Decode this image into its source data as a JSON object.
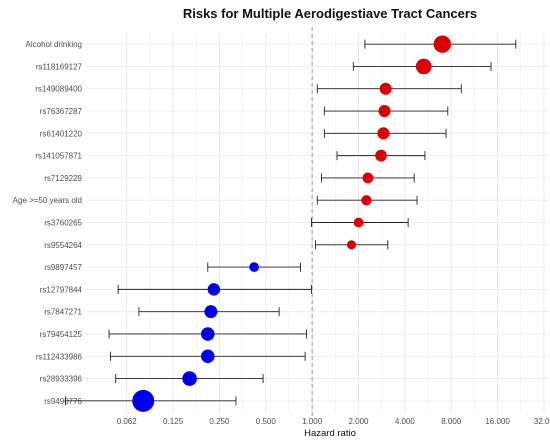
{
  "chart_data": {
    "type": "forest",
    "title": "Risks for Multiple Aerodigestiave Tract Cancers",
    "xlabel": "Hazard ratio",
    "ylabel": "",
    "x_scale": "log2",
    "xlim": [
      0.034,
      34
    ],
    "x_ticks": [
      0.0625,
      0.125,
      0.25,
      0.5,
      1,
      2,
      4,
      8,
      16,
      32
    ],
    "x_tick_labels": [
      "0.062",
      "0.125",
      "0.250",
      "0.500",
      "1.000",
      "2.000",
      "4.000",
      "8.000",
      "16.000",
      "32.00"
    ],
    "reference_line": 1,
    "grid": true,
    "legend": "none",
    "colors": {
      "risk": "#dd0000",
      "protective": "#0000ee",
      "whisker": "#222222",
      "reference": "#999999"
    },
    "rows": [
      {
        "label": "Alcohol drinking",
        "hr": 7.0,
        "lower": 2.2,
        "upper": 21.0,
        "direction": "risk",
        "weight": 0.55
      },
      {
        "label": "rs118169127",
        "hr": 5.3,
        "lower": 1.85,
        "upper": 14.5,
        "direction": "risk",
        "weight": 0.42
      },
      {
        "label": "rs149089400",
        "hr": 3.0,
        "lower": 1.08,
        "upper": 9.3,
        "direction": "risk",
        "weight": 0.2
      },
      {
        "label": "rs76367287",
        "hr": 2.95,
        "lower": 1.2,
        "upper": 7.6,
        "direction": "risk",
        "weight": 0.2
      },
      {
        "label": "rs61401220",
        "hr": 2.9,
        "lower": 1.2,
        "upper": 7.4,
        "direction": "risk",
        "weight": 0.2
      },
      {
        "label": "rs141057871",
        "hr": 2.8,
        "lower": 1.45,
        "upper": 5.4,
        "direction": "risk",
        "weight": 0.18
      },
      {
        "label": "rs7129229",
        "hr": 2.3,
        "lower": 1.15,
        "upper": 4.6,
        "direction": "risk",
        "weight": 0.14
      },
      {
        "label": "Age >=50 years old",
        "hr": 2.25,
        "lower": 1.08,
        "upper": 4.8,
        "direction": "risk",
        "weight": 0.12
      },
      {
        "label": "rs3760265",
        "hr": 2.0,
        "lower": 0.99,
        "upper": 4.2,
        "direction": "risk",
        "weight": 0.1
      },
      {
        "label": "rs9554264",
        "hr": 1.8,
        "lower": 1.05,
        "upper": 3.1,
        "direction": "risk",
        "weight": 0.08
      },
      {
        "label": "rs9897457",
        "hr": 0.42,
        "lower": 0.21,
        "upper": 0.84,
        "direction": "protective",
        "weight": 0.1
      },
      {
        "label": "rs12797844",
        "hr": 0.23,
        "lower": 0.055,
        "upper": 0.99,
        "direction": "protective",
        "weight": 0.22
      },
      {
        "label": "rs7847271",
        "hr": 0.22,
        "lower": 0.075,
        "upper": 0.61,
        "direction": "protective",
        "weight": 0.25
      },
      {
        "label": "rs79454125",
        "hr": 0.21,
        "lower": 0.048,
        "upper": 0.92,
        "direction": "protective",
        "weight": 0.28
      },
      {
        "label": "rs112433986",
        "hr": 0.21,
        "lower": 0.049,
        "upper": 0.9,
        "direction": "protective",
        "weight": 0.28
      },
      {
        "label": "rs28933396",
        "hr": 0.16,
        "lower": 0.053,
        "upper": 0.48,
        "direction": "protective",
        "weight": 0.35
      },
      {
        "label": "rs9490776",
        "hr": 0.08,
        "lower": 0.025,
        "upper": 0.32,
        "direction": "protective",
        "weight": 1.0
      }
    ]
  }
}
